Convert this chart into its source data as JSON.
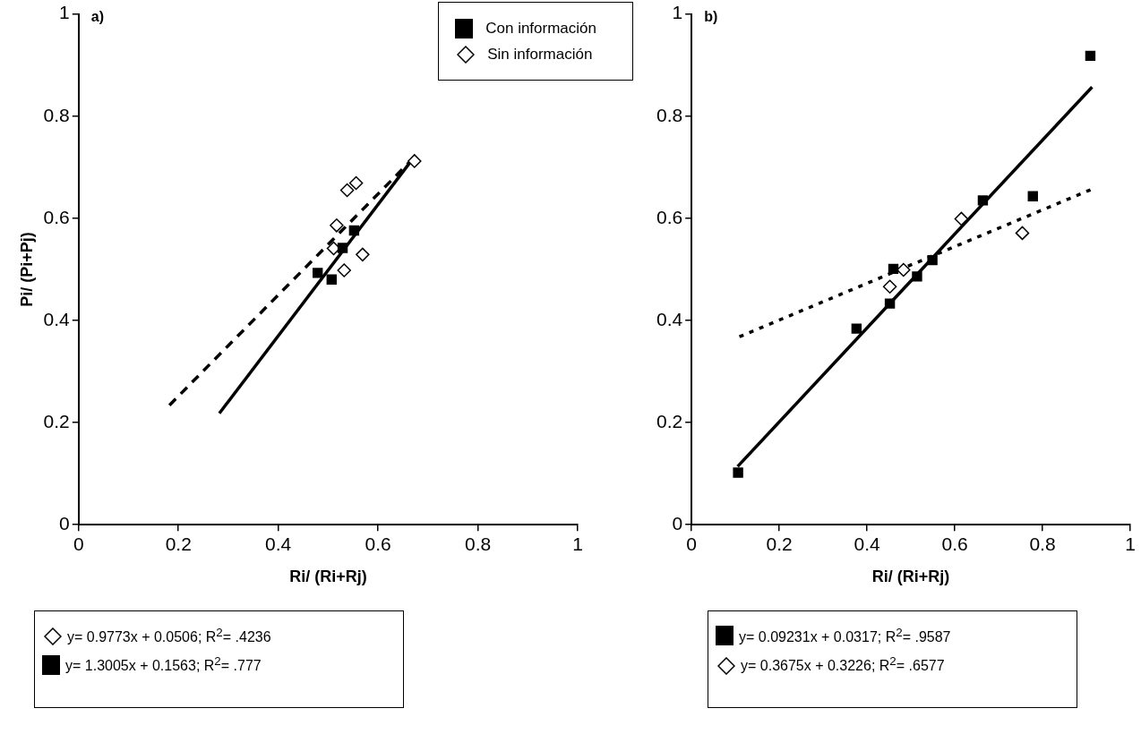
{
  "chart_data": [
    {
      "type": "scatter",
      "title": "a)",
      "xlabel": "Ri/ (Ri+Rj)",
      "ylabel": "Pi/ (Pi+Pj)",
      "xlim": [
        0,
        1
      ],
      "xticks": [
        0,
        0.2,
        0.4,
        0.6,
        0.8,
        1
      ],
      "ylim": [
        0,
        1
      ],
      "yticks": [
        0,
        0.2,
        0.4,
        0.6,
        0.8,
        1
      ],
      "grid": false,
      "legend": "top right",
      "series": [
        {
          "name": "Con información",
          "color": "#000000",
          "marker": "square",
          "x": [
            0.479,
            0.507,
            0.529,
            0.552
          ],
          "values": [
            0.493,
            0.48,
            0.542,
            0.576
          ]
        },
        {
          "name": "Sin información",
          "color": "#000000",
          "marker": "diamond",
          "x": [
            0.673,
            0.538,
            0.556,
            0.517,
            0.511,
            0.532,
            0.569
          ],
          "values": [
            0.712,
            0.655,
            0.669,
            0.586,
            0.541,
            0.498,
            0.529
          ]
        },
        {
          "type": "line",
          "color": "#000000",
          "line_style": "solid",
          "x": [
            0.282,
            0.67
          ],
          "values": [
            0.218,
            0.717
          ]
        },
        {
          "type": "line",
          "color": "#000000",
          "line_style": "dashed",
          "x": [
            0.182,
            0.668
          ],
          "values": [
            0.234,
            0.715
          ]
        }
      ],
      "annotations": [
        "y= 0.9773x + 0.0506; R$^{2}$= .4236",
        "y= 1.3005x + 0.1563; R$^{2}$= .777"
      ]
    },
    {
      "type": "scatter",
      "title": "b)",
      "xlabel": "Ri/ (Ri+Rj)",
      "xlim": [
        0,
        1
      ],
      "xticks": [
        0,
        0.2,
        0.4,
        0.6,
        0.8,
        1
      ],
      "ylim": [
        0,
        1
      ],
      "yticks": [
        0,
        0.2,
        0.4,
        0.6,
        0.8,
        1
      ],
      "grid": false,
      "series": [
        {
          "color": "#000000",
          "marker": "square",
          "x": [
            0.106,
            0.376,
            0.452,
            0.46,
            0.514,
            0.549,
            0.664,
            0.778,
            0.909
          ],
          "values": [
            0.102,
            0.384,
            0.433,
            0.501,
            0.486,
            0.518,
            0.635,
            0.643,
            0.918
          ]
        },
        {
          "color": "#000000",
          "marker": "diamond",
          "x": [
            0.452,
            0.483,
            0.615,
            0.754
          ],
          "values": [
            0.466,
            0.499,
            0.599,
            0.571
          ]
        },
        {
          "type": "line",
          "color": "#000000",
          "line_style": "solid",
          "x": [
            0.105,
            0.913
          ],
          "values": [
            0.114,
            0.857
          ]
        },
        {
          "type": "line",
          "color": "#000000",
          "line_style": "dotted",
          "x": [
            0.109,
            0.91
          ],
          "values": [
            0.368,
            0.656
          ]
        }
      ],
      "annotations": [
        "y= 0.09231x + 0.0317; R$^{2}$= .9587",
        "y= 0.3675x + 0.3226; R$^{2}$= .6577"
      ]
    }
  ]
}
